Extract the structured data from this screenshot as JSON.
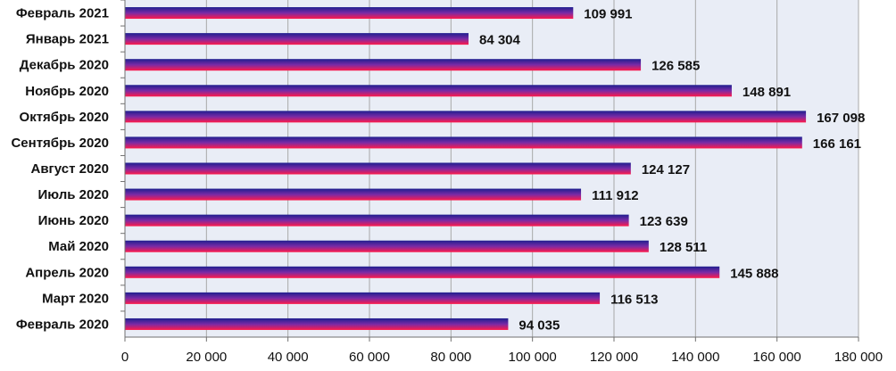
{
  "chart_data": {
    "type": "bar",
    "orientation": "horizontal",
    "categories": [
      "Февраль 2021",
      "Январь  2021",
      "Декабрь  2020",
      "Ноябрь  2020",
      "Октябрь  2020",
      "Сентябрь 2020",
      "Август 2020",
      "Июль 2020",
      "Июнь 2020",
      "Май 2020",
      "Апрель 2020",
      "Март 2020",
      "Февраль 2020"
    ],
    "values": [
      109991,
      84304,
      126585,
      148891,
      167098,
      166161,
      124127,
      111912,
      123639,
      128511,
      145888,
      116513,
      94035
    ],
    "value_labels": [
      "109 991",
      "84 304",
      "126 585",
      "148 891",
      "167 098",
      "166 161",
      "124 127",
      "111 912",
      "123 639",
      "128 511",
      "145 888",
      "116 513",
      "94 035"
    ],
    "xlim": [
      0,
      180000
    ],
    "x_ticks": [
      0,
      20000,
      40000,
      60000,
      80000,
      100000,
      120000,
      140000,
      160000,
      180000
    ],
    "x_tick_labels": [
      "0",
      "20 000",
      "40 000",
      "60 000",
      "80 000",
      "100 000",
      "120 000",
      "140 000",
      "160 000",
      "180 000"
    ],
    "grid": true,
    "legend": "none",
    "colors": {
      "bar_top": "#1f1f8f",
      "bar_mid": "#7a2aa6",
      "bar_bottom": "#ff1a4a",
      "plot_bg": "#e9edf6",
      "grid": "#a8a8a8",
      "axis": "#707070"
    }
  }
}
